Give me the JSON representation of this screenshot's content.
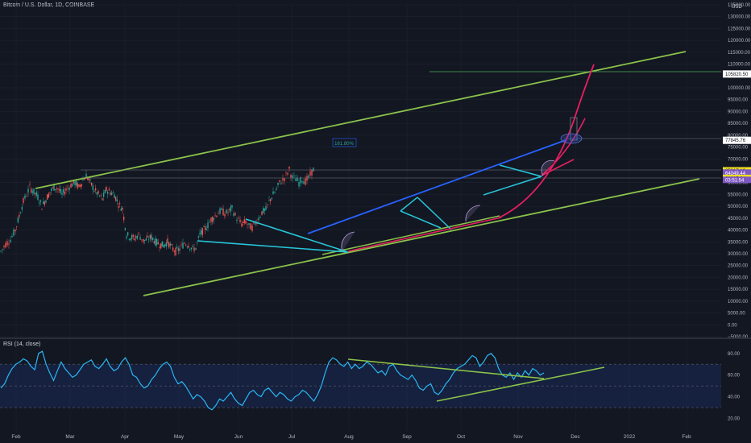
{
  "header": {
    "title": "Bitcoin / U.S. Dollar, 1D, COINBASE",
    "currency": "USD"
  },
  "rsi_panel": {
    "title": "RSI (14, close)"
  },
  "chart_data": [
    {
      "type": "candlestick",
      "title": "Bitcoin / U.S. Dollar, 1D, COINBASE",
      "x_ticks": [
        "Feb",
        "Mar",
        "Apr",
        "May",
        "Jun",
        "Jul",
        "Aug",
        "Sep",
        "Oct",
        "Nov",
        "Dec",
        "2022",
        "Feb"
      ],
      "y_ticks": [
        135000,
        130000,
        125000,
        120000,
        115000,
        110000,
        105000,
        100000,
        95000,
        90000,
        85000,
        80000,
        75000,
        70000,
        65000,
        60000,
        55000,
        50000,
        45000,
        40000,
        35000,
        30000,
        25000,
        20000,
        15000,
        10000,
        5000,
        0,
        -5000
      ],
      "y_tick_labels": [
        "135000.00",
        "130000.00",
        "125000.00",
        "120000.00",
        "115000.00",
        "110000.00",
        "105000.00",
        "100000.00",
        "95000.00",
        "90000.00",
        "85000.00",
        "80000.00",
        "75000.00",
        "70000.00",
        "65000.00",
        "60000.00",
        "55000.00",
        "50000.00",
        "45000.00",
        "40000.00",
        "35000.00",
        "30000.00",
        "25000.00",
        "20000.00",
        "15000.00",
        "10000.00",
        "5000.00",
        "0.00",
        "−5000.00"
      ],
      "ylim": [
        -5000,
        135000
      ],
      "close_path": [
        [
          1,
          31000
        ],
        [
          7,
          34000
        ],
        [
          13,
          36000
        ],
        [
          19,
          40000
        ],
        [
          24,
          46000
        ],
        [
          29,
          52000
        ],
        [
          33,
          55000
        ],
        [
          37,
          58000
        ],
        [
          42,
          56000
        ],
        [
          47,
          54000
        ],
        [
          52,
          50000
        ],
        [
          57,
          53000
        ],
        [
          62,
          56000
        ],
        [
          67,
          58000
        ],
        [
          72,
          57500
        ],
        [
          77,
          55000
        ],
        [
          82,
          57000
        ],
        [
          88,
          59000
        ],
        [
          93,
          60000
        ],
        [
          98,
          58000
        ],
        [
          103,
          61000
        ],
        [
          107,
          63000
        ],
        [
          112,
          60000
        ],
        [
          117,
          57000
        ],
        [
          122,
          55000
        ],
        [
          127,
          53000
        ],
        [
          132,
          57000
        ],
        [
          137,
          56000
        ],
        [
          142,
          55000
        ],
        [
          147,
          51000
        ],
        [
          152,
          49000
        ],
        [
          157,
          38000
        ],
        [
          162,
          37000
        ],
        [
          167,
          36500
        ],
        [
          172,
          38000
        ],
        [
          178,
          35500
        ],
        [
          183,
          36000
        ],
        [
          188,
          37000
        ],
        [
          193,
          35000
        ],
        [
          198,
          34000
        ],
        [
          203,
          33500
        ],
        [
          208,
          35000
        ],
        [
          213,
          32500
        ],
        [
          218,
          31000
        ],
        [
          223,
          32000
        ],
        [
          229,
          34500
        ],
        [
          234,
          33800
        ],
        [
          239,
          31800
        ],
        [
          243,
          32500
        ],
        [
          248,
          38000
        ],
        [
          253,
          40000
        ],
        [
          258,
          42000
        ],
        [
          262,
          44500
        ],
        [
          267,
          46000
        ],
        [
          271,
          47500
        ],
        [
          275,
          48000
        ],
        [
          279,
          47000
        ],
        [
          283,
          47500
        ],
        [
          288,
          49000
        ],
        [
          292,
          46000
        ],
        [
          296,
          44000
        ],
        [
          300,
          42500
        ],
        [
          305,
          43500
        ],
        [
          309,
          41500
        ],
        [
          313,
          41000
        ],
        [
          317,
          43000
        ],
        [
          321,
          45000
        ],
        [
          325,
          47500
        ],
        [
          330,
          48500
        ],
        [
          334,
          52000
        ],
        [
          339,
          55000
        ],
        [
          343,
          57000
        ],
        [
          347,
          60000
        ],
        [
          351,
          61000
        ],
        [
          355,
          63000
        ],
        [
          359,
          65500
        ],
        [
          363,
          62000
        ],
        [
          367,
          61500
        ],
        [
          371,
          60000
        ],
        [
          375,
          61500
        ],
        [
          379,
          60500
        ],
        [
          383,
          62000
        ],
        [
          387,
          64500
        ],
        [
          391,
          66500
        ]
      ],
      "price_tags": [
        {
          "value": 105820.5,
          "label": "105820.50",
          "color": "#ffffff"
        },
        {
          "value": 77845.76,
          "label": "77845.76",
          "color": "#ffffff"
        },
        {
          "value": 65017.19,
          "label": "65017.19",
          "color": "#f0e020"
        },
        {
          "value": 64049.44,
          "label": "64049.44",
          "color": "#7e57c2"
        },
        {
          "value": 61817.24,
          "label": "61817.24",
          "color": "#f0e020"
        }
      ],
      "countdown": "03:51:54",
      "fib_label": "161.80%",
      "colors": {
        "up": "#26a69a",
        "down": "#ef5350",
        "channel": "#8bc34a",
        "wedge": "#26c6da",
        "trend": "#2962ff",
        "curve": "#e91e63"
      }
    },
    {
      "type": "line",
      "title": "RSI (14, close)",
      "y_ticks": [
        80,
        60,
        40,
        20
      ],
      "y_tick_labels": [
        "80.00",
        "60.00",
        "40.00",
        "20.00"
      ],
      "ylim": [
        10,
        88
      ],
      "band": [
        30,
        70
      ],
      "values": [
        48,
        52,
        60,
        66,
        70,
        72,
        75,
        73,
        68,
        65,
        80,
        82,
        70,
        62,
        55,
        64,
        72,
        66,
        62,
        58,
        60,
        65,
        70,
        72,
        74,
        68,
        66,
        70,
        75,
        68,
        64,
        66,
        72,
        76,
        70,
        60,
        58,
        52,
        48,
        50,
        56,
        60,
        66,
        70,
        72,
        68,
        58,
        52,
        54,
        50,
        44,
        38,
        42,
        40,
        36,
        30,
        28,
        32,
        38,
        36,
        40,
        44,
        38,
        34,
        32,
        38,
        44,
        46,
        42,
        40,
        46,
        48,
        44,
        40,
        44,
        42,
        38,
        36,
        40,
        42,
        46,
        44,
        40,
        36,
        42,
        50,
        62,
        72,
        76,
        74,
        70,
        68,
        72,
        66,
        70,
        66,
        68,
        72,
        70,
        66,
        62,
        64,
        60,
        68,
        70,
        64,
        60,
        58,
        56,
        60,
        55,
        48,
        46,
        50,
        52,
        44,
        42,
        46,
        52,
        56,
        62,
        66,
        68,
        70,
        74,
        78,
        76,
        68,
        72,
        78,
        80,
        76,
        66,
        60,
        58,
        62,
        56,
        62,
        58,
        64,
        60,
        66,
        64,
        60,
        62
      ]
    }
  ]
}
